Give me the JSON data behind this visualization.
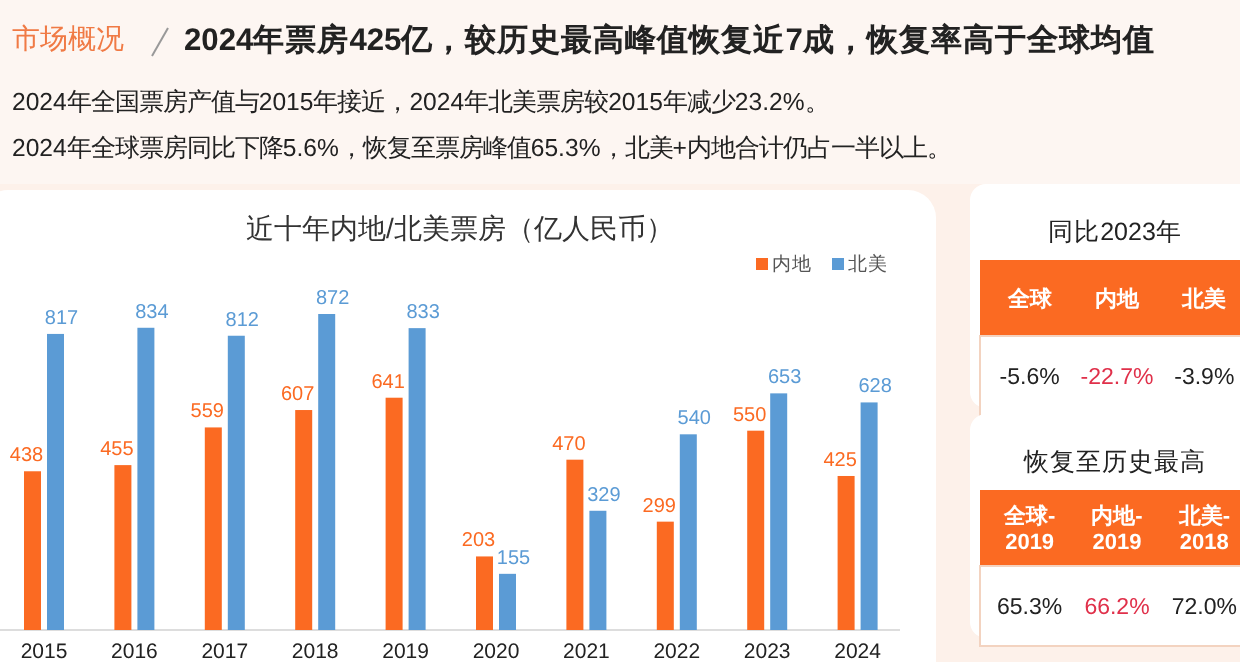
{
  "chart_data": [
    {
      "type": "other",
      "subtitle": "市场概况",
      "title": "2024年票房425亿，较历史最高峰值恢复近7成，恢复率高于全球均值",
      "annotations": [
        "2024年全国票房产值与2015年接近，2024年北美票房较2015年减少23.2%。",
        "2024年全球票房同比下降5.6%，恢复至票房峰值65.3%，北美+内地合计仍占一半以上。"
      ]
    },
    {
      "type": "bar",
      "title": "近十年内地/北美票房（亿人民币）",
      "categories": [
        "2015",
        "2016",
        "2017",
        "2018",
        "2019",
        "2020",
        "2021",
        "2022",
        "2023",
        "2024"
      ],
      "series": [
        {
          "name": "内地",
          "color": "#fb6a22",
          "values": [
            438,
            455,
            559,
            607,
            641,
            203,
            470,
            299,
            550,
            425
          ]
        },
        {
          "name": "北美",
          "color": "#5b9bd5",
          "values": [
            817,
            834,
            812,
            872,
            833,
            155,
            329,
            540,
            653,
            628
          ]
        }
      ],
      "data_labels": true,
      "legend": "top right"
    },
    {
      "type": "other",
      "title": "同比2023年",
      "annotations": [
        "全球",
        "内地",
        "北美",
        "-5.6%",
        "-22.7%",
        "-3.9%"
      ]
    },
    {
      "type": "other",
      "title": "恢复至历史最高",
      "annotations": [
        "全球-\n2019",
        "内地-\n2019",
        "北美-\n2018",
        "65.3%",
        "66.2%",
        "72.0%"
      ]
    }
  ]
}
